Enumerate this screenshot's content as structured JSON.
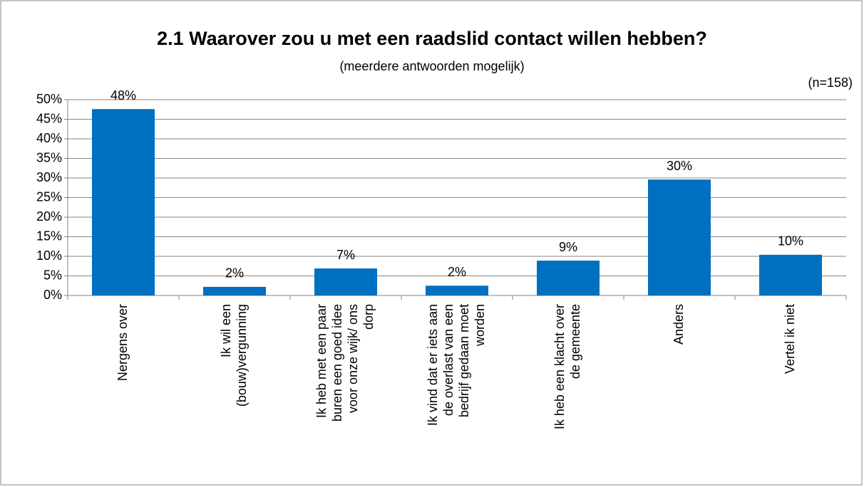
{
  "chart_data": {
    "type": "bar",
    "title": "2.1 Waarover zou u met een raadslid contact willen hebben?",
    "subtitle": "(meerdere antwoorden mogelijk)",
    "annotation": "(n=158)",
    "categories": [
      "Nergens over",
      "Ik wil een (bouw)vergunning",
      "Ik heb met een paar buren een goed idee voor onze wijk/ ons dorp",
      "Ik vind dat er iets aan de overlast van een bedrijf gedaan moet worden",
      "Ik heb een klacht over de gemeente",
      "Anders",
      "Vertel ik niet"
    ],
    "values": [
      47.6,
      2.2,
      6.9,
      2.5,
      8.9,
      29.6,
      10.4
    ],
    "value_labels": [
      "48%",
      "2%",
      "7%",
      "2%",
      "9%",
      "30%",
      "10%"
    ],
    "color": "#0070c0",
    "ylim": [
      0,
      50
    ],
    "yticks": [
      {
        "value": 0,
        "label": "0%"
      },
      {
        "value": 5,
        "label": "5%"
      },
      {
        "value": 10,
        "label": "10%"
      },
      {
        "value": 15,
        "label": "15%"
      },
      {
        "value": 20,
        "label": "20%"
      },
      {
        "value": 25,
        "label": "25%"
      },
      {
        "value": 30,
        "label": "30%"
      },
      {
        "value": 35,
        "label": "35%"
      },
      {
        "value": 40,
        "label": "40%"
      },
      {
        "value": 45,
        "label": "45%"
      },
      {
        "value": 50,
        "label": "50%"
      }
    ],
    "grid": true
  }
}
